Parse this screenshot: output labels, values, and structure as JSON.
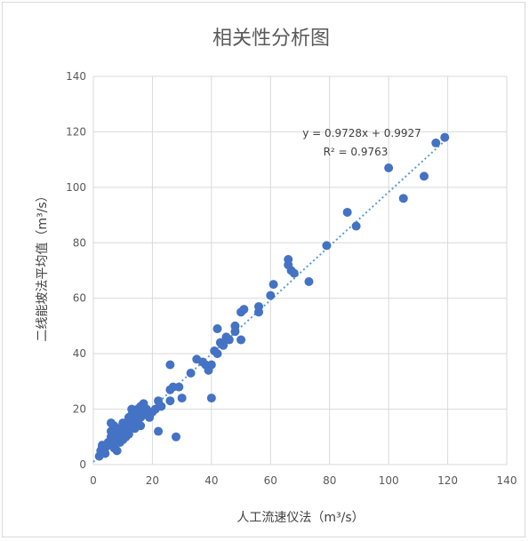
{
  "chart_data": {
    "type": "scatter",
    "title": "相关性分析图",
    "xlabel": "人工流速仪法（m³/s）",
    "ylabel": "二线能坡法平均值（m³/s）",
    "xlim": [
      0,
      140
    ],
    "ylim": [
      0,
      140
    ],
    "x_ticks": [
      "0",
      "20",
      "40",
      "60",
      "80",
      "100",
      "120",
      "140"
    ],
    "y_ticks": [
      "0",
      "20",
      "40",
      "60",
      "80",
      "100",
      "120",
      "140"
    ],
    "grid": true,
    "marker_color": "#4472c4",
    "trendline": {
      "slope": 0.9728,
      "intercept": 0.9927,
      "equation": "y = 0.9728x + 0.9927",
      "r2": "R² = 0.9763",
      "style": "dotted"
    },
    "points": [
      [
        2,
        3
      ],
      [
        2.5,
        5
      ],
      [
        3,
        6
      ],
      [
        3,
        7
      ],
      [
        4,
        6
      ],
      [
        4,
        4
      ],
      [
        5,
        7
      ],
      [
        5,
        8
      ],
      [
        6,
        15
      ],
      [
        6,
        12
      ],
      [
        6,
        10
      ],
      [
        7,
        14
      ],
      [
        7,
        9
      ],
      [
        7,
        6
      ],
      [
        8,
        5
      ],
      [
        8,
        11
      ],
      [
        8,
        13
      ],
      [
        9,
        8
      ],
      [
        9,
        10
      ],
      [
        9,
        12
      ],
      [
        10,
        9
      ],
      [
        10,
        11
      ],
      [
        10,
        13
      ],
      [
        10,
        15
      ],
      [
        11,
        10
      ],
      [
        11,
        12
      ],
      [
        11,
        14
      ],
      [
        12,
        13
      ],
      [
        12,
        15
      ],
      [
        12,
        17
      ],
      [
        12,
        11
      ],
      [
        13,
        14
      ],
      [
        13,
        16
      ],
      [
        13,
        18
      ],
      [
        13,
        20
      ],
      [
        14,
        15
      ],
      [
        14,
        17
      ],
      [
        14,
        19
      ],
      [
        14,
        13
      ],
      [
        15,
        16
      ],
      [
        15,
        18
      ],
      [
        15,
        20
      ],
      [
        16,
        17
      ],
      [
        16,
        21
      ],
      [
        16,
        14
      ],
      [
        17,
        19
      ],
      [
        17,
        22
      ],
      [
        18,
        18
      ],
      [
        18,
        20
      ],
      [
        19,
        17
      ],
      [
        20,
        19
      ],
      [
        21,
        20
      ],
      [
        22,
        12
      ],
      [
        22,
        23
      ],
      [
        23,
        21
      ],
      [
        26,
        36
      ],
      [
        26,
        27
      ],
      [
        26,
        23
      ],
      [
        27,
        28
      ],
      [
        28,
        10
      ],
      [
        29,
        28
      ],
      [
        30,
        24
      ],
      [
        33,
        33
      ],
      [
        35,
        38
      ],
      [
        37,
        37
      ],
      [
        38,
        36
      ],
      [
        39,
        34
      ],
      [
        40,
        36
      ],
      [
        40,
        24
      ],
      [
        41,
        41
      ],
      [
        42,
        40
      ],
      [
        42,
        49
      ],
      [
        43,
        44
      ],
      [
        44,
        43
      ],
      [
        45,
        46
      ],
      [
        46,
        45
      ],
      [
        48,
        48
      ],
      [
        48,
        50
      ],
      [
        50,
        45
      ],
      [
        50,
        55
      ],
      [
        51,
        56
      ],
      [
        56,
        55
      ],
      [
        56,
        57
      ],
      [
        60,
        61
      ],
      [
        61,
        65
      ],
      [
        66,
        72
      ],
      [
        66,
        74
      ],
      [
        67,
        70
      ],
      [
        68,
        69
      ],
      [
        73,
        66
      ],
      [
        79,
        79
      ],
      [
        86,
        91
      ],
      [
        89,
        86
      ],
      [
        100,
        107
      ],
      [
        105,
        96
      ],
      [
        112,
        104
      ],
      [
        116,
        116
      ],
      [
        119,
        118
      ]
    ]
  }
}
